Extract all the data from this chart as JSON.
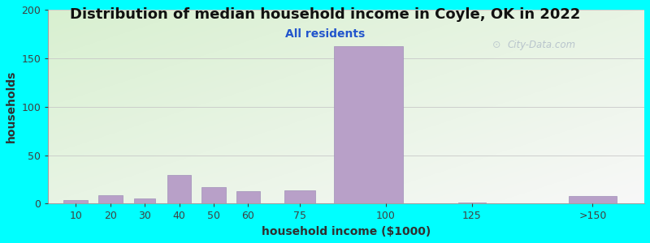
{
  "title": "Distribution of median household income in Coyle, OK in 2022",
  "subtitle": "All residents",
  "xlabel": "household income ($1000)",
  "ylabel": "households",
  "background_color": "#00FFFF",
  "bar_color": "#b8a0c8",
  "bar_edge_color": "#a090b8",
  "ylim": [
    0,
    200
  ],
  "yticks": [
    0,
    50,
    100,
    150,
    200
  ],
  "bar_positions": [
    10,
    20,
    30,
    40,
    50,
    60,
    75,
    95,
    125,
    160
  ],
  "bar_widths": [
    7,
    7,
    6,
    7,
    7,
    7,
    9,
    20,
    8,
    14
  ],
  "bar_heights": [
    4,
    9,
    5,
    30,
    17,
    13,
    14,
    162,
    1,
    8
  ],
  "xtick_positions": [
    10,
    20,
    30,
    40,
    50,
    60,
    75,
    100,
    125,
    160
  ],
  "xtick_labels": [
    "10",
    "20",
    "30",
    "40",
    "50",
    "60",
    "75",
    "100",
    "125",
    ">150"
  ],
  "xlim": [
    2,
    175
  ],
  "title_fontsize": 13,
  "subtitle_fontsize": 10,
  "label_fontsize": 10,
  "tick_fontsize": 9,
  "watermark_text": "City-Data.com"
}
